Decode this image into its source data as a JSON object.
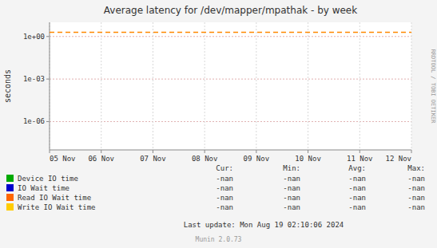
{
  "chart_data": {
    "type": "line",
    "title": "Average latency for /dev/mapper/mpathak - by week",
    "y_label": "seconds",
    "categories": [
      "05 Nov",
      "06 Nov",
      "07 Nov",
      "08 Nov",
      "09 Nov",
      "10 Nov",
      "11 Nov",
      "12 Nov"
    ],
    "log": "y",
    "ylim": [
      1e-08,
      10
    ],
    "yticks": [
      {
        "value": 1e-06,
        "label": "1e-06"
      },
      {
        "value": 0.001,
        "label": "1e-03"
      },
      {
        "value": 1,
        "label": "1e+00"
      }
    ],
    "grid": true,
    "hlines": [
      {
        "value": 2.0,
        "color": "#ff8800",
        "line_style": "dashed"
      }
    ],
    "stat_headers": [
      "Cur:",
      "Min:",
      "Avg:",
      "Max:"
    ],
    "series": [
      {
        "name": "Device IO time",
        "color": "#00aa00",
        "values": [
          null,
          null,
          null,
          null,
          null,
          null,
          null,
          null
        ],
        "stats": [
          "-nan",
          "-nan",
          "-nan",
          "-nan"
        ]
      },
      {
        "name": "IO Wait time",
        "color": "#0000cc",
        "values": [
          null,
          null,
          null,
          null,
          null,
          null,
          null,
          null
        ],
        "stats": [
          "-nan",
          "-nan",
          "-nan",
          "-nan"
        ]
      },
      {
        "name": "Read IO Wait time",
        "color": "#ff6600",
        "values": [
          null,
          null,
          null,
          null,
          null,
          null,
          null,
          null
        ],
        "stats": [
          "-nan",
          "-nan",
          "-nan",
          "-nan"
        ]
      },
      {
        "name": "Write IO Wait time",
        "color": "#ffcc00",
        "values": [
          null,
          null,
          null,
          null,
          null,
          null,
          null,
          null
        ],
        "stats": [
          "-nan",
          "-nan",
          "-nan",
          "-nan"
        ]
      }
    ],
    "annotations": [
      "RRDTOOL / TOBI OETIKER",
      "Last update: Mon Aug 19 02:10:06 2024",
      "Munin 2.0.73"
    ]
  }
}
